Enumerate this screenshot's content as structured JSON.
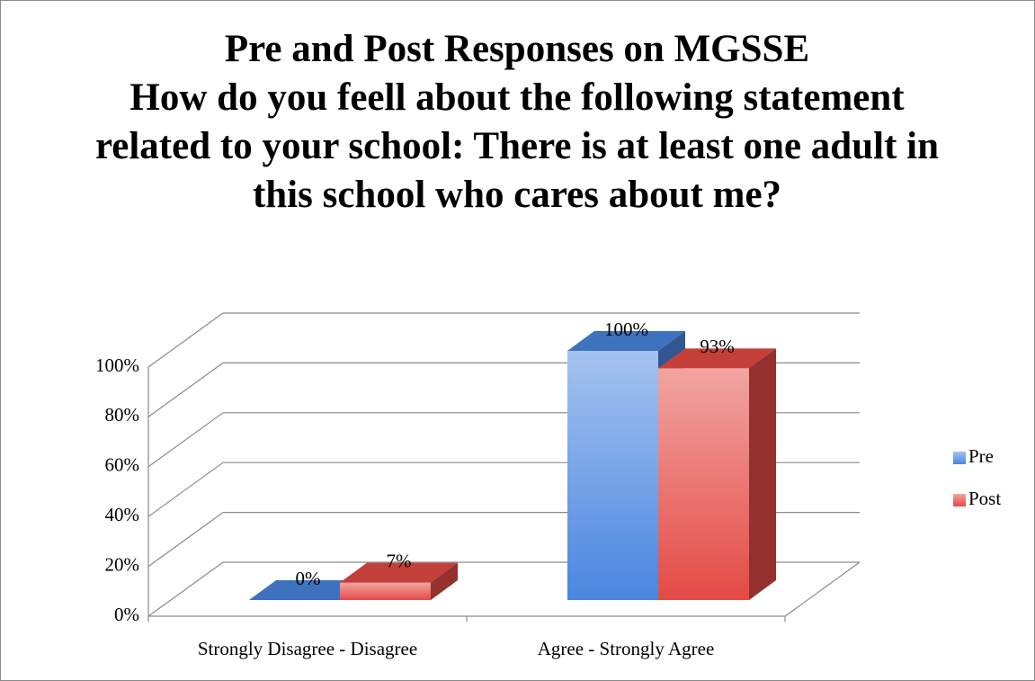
{
  "chart_data": {
    "type": "bar3d",
    "title": "Pre and Post Responses on MGSSE\nHow do you feell about the following statement related to your school:  There is at least one adult in this school who cares about me?",
    "categories": [
      "Strongly Disagree - Disagree",
      "Agree - Strongly Agree"
    ],
    "series": [
      {
        "name": "Pre",
        "color": "#4a86e0",
        "values": [
          0,
          100
        ],
        "value_labels": [
          "0%",
          "100%"
        ]
      },
      {
        "name": "Post",
        "color": "#e44a45",
        "values": [
          7,
          93
        ],
        "value_labels": [
          "7%",
          "93%"
        ]
      }
    ],
    "ylim": [
      0,
      100
    ],
    "yticks": [
      {
        "value": 0,
        "label": "0%"
      },
      {
        "value": 20,
        "label": "20%"
      },
      {
        "value": 40,
        "label": "40%"
      },
      {
        "value": 60,
        "label": "60%"
      },
      {
        "value": 80,
        "label": "80%"
      },
      {
        "value": 100,
        "label": "100%"
      }
    ],
    "grid": true,
    "legend": "right"
  }
}
